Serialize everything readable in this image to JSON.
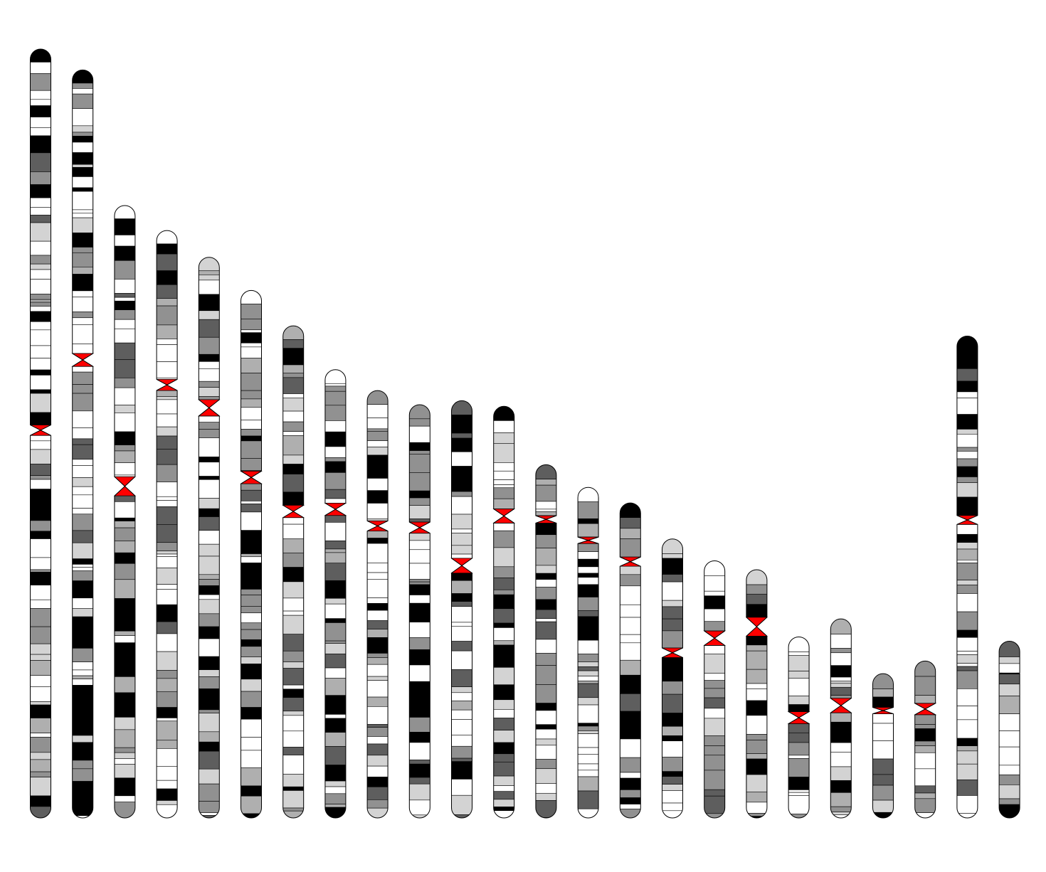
{
  "stain_colors": {
    "gneg": "#ffffff",
    "gpos25": "#d3d3d3",
    "gpos50": "#afafaf",
    "gpos75": "#919191",
    "gpos100": "#5e5e5e",
    "gposfull": "#000000",
    "gvar": "#afafaf",
    "stalk": "#919191",
    "acen": "#ff0000"
  },
  "outline_color": "#000000",
  "chart_data": {
    "type": "ideogram",
    "y_units": "bp",
    "chromosomes": [
      {
        "length": 248956422,
        "centromere": [
          121700000,
          125100000
        ]
      },
      {
        "length": 242193529,
        "centromere": [
          91800000,
          96000000
        ]
      },
      {
        "length": 198295559,
        "centromere": [
          87800000,
          94000000
        ]
      },
      {
        "length": 190214555,
        "centromere": [
          48200000,
          51800000
        ]
      },
      {
        "length": 181538259,
        "centromere": [
          46100000,
          51400000
        ]
      },
      {
        "length": 170805979,
        "centromere": [
          58500000,
          62600000
        ]
      },
      {
        "length": 159345973,
        "centromere": [
          58100000,
          62100000
        ]
      },
      {
        "length": 145138636,
        "centromere": [
          43200000,
          47200000
        ]
      },
      {
        "length": 138394717,
        "centromere": [
          42200000,
          45500000
        ]
      },
      {
        "length": 133797422,
        "centromere": [
          38000000,
          41600000
        ]
      },
      {
        "length": 135086622,
        "centromere": [
          51000000,
          55800000
        ]
      },
      {
        "length": 133275309,
        "centromere": [
          33200000,
          37800000
        ]
      },
      {
        "length": 114364328,
        "centromere": [
          16500000,
          18900000
        ]
      },
      {
        "length": 107043718,
        "centromere": [
          16100000,
          18200000
        ]
      },
      {
        "length": 101991189,
        "centromere": [
          17500000,
          20500000
        ]
      },
      {
        "length": 90338345,
        "centromere": [
          35300000,
          38400000
        ]
      },
      {
        "length": 83257441,
        "centromere": [
          22700000,
          27400000
        ]
      },
      {
        "length": 80373285,
        "centromere": [
          15400000,
          21500000
        ]
      },
      {
        "length": 58617616,
        "centromere": [
          24200000,
          28100000
        ]
      },
      {
        "length": 64444167,
        "centromere": [
          25700000,
          30400000
        ]
      },
      {
        "length": 46709983,
        "centromere": [
          10900000,
          13000000
        ]
      },
      {
        "length": 50818468,
        "centromere": [
          13700000,
          17400000
        ]
      },
      {
        "length": 156040895,
        "centromere": [
          58100000,
          61000000
        ]
      },
      {
        "length": 57227415,
        "centromere": [
          10300000,
          10600000
        ]
      }
    ]
  }
}
